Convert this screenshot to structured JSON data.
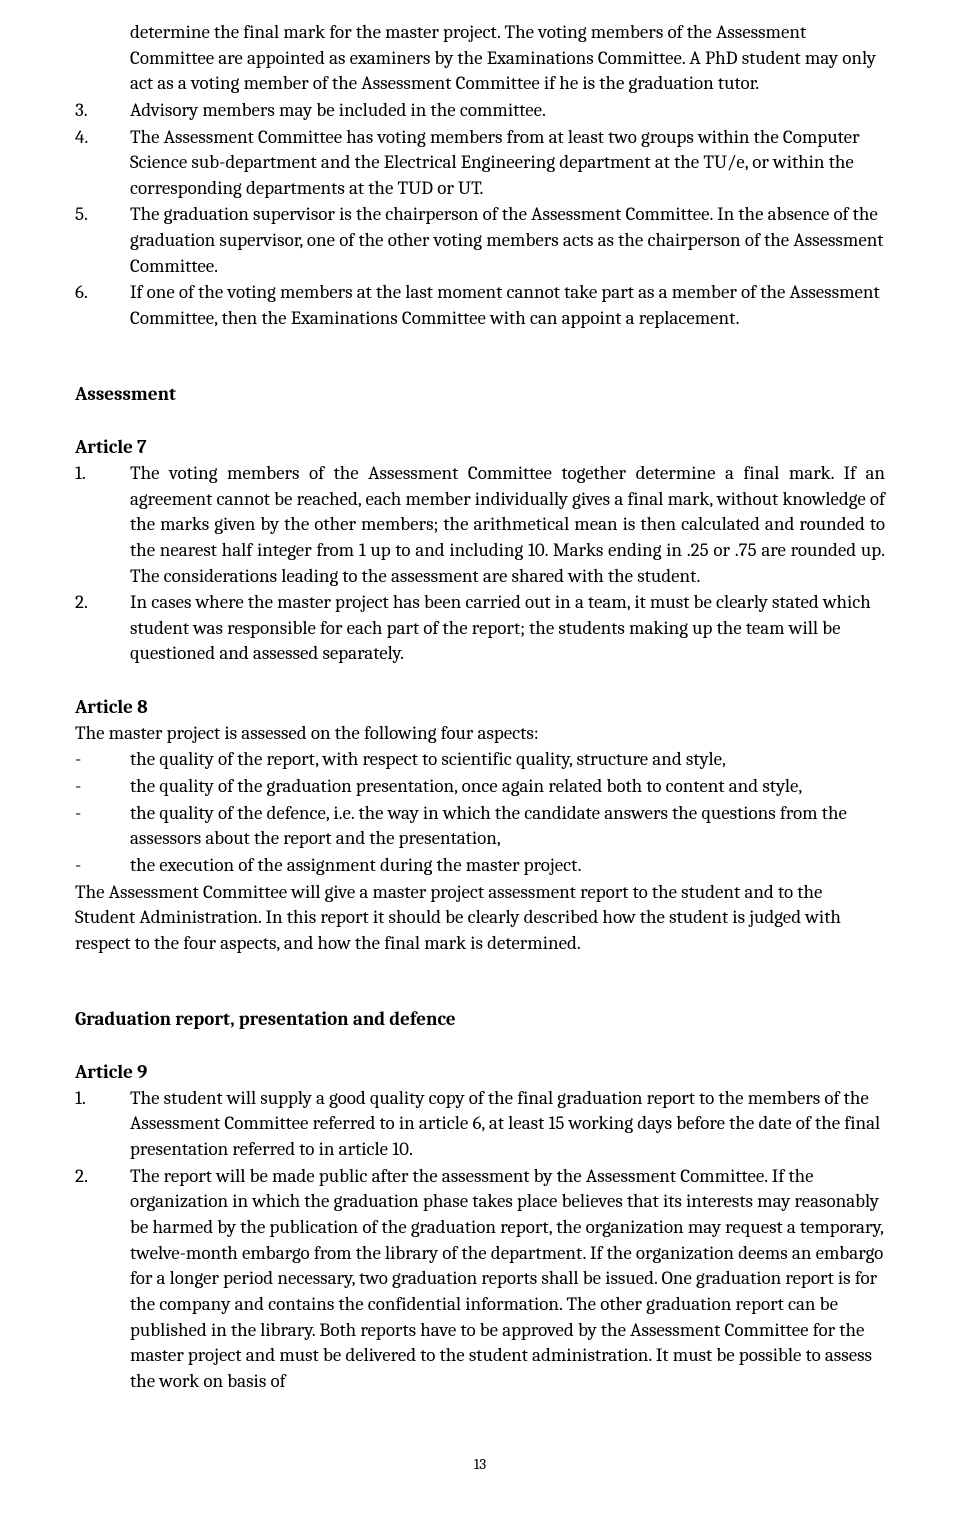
{
  "topItems": [
    {
      "num": "",
      "text": "determine the final mark for the master project. The voting members of the Assessment Committee are appointed as examiners by the Examinations Committee. A PhD student may only act as a voting member of the Assessment Committee if he is the graduation tutor."
    },
    {
      "num": "3.",
      "text": "Advisory members may be included in the committee."
    },
    {
      "num": "4.",
      "text": "The Assessment Committee has voting members from at least two groups within the Computer Science sub-department and the Electrical Engineering department at the TU/e, or within the corresponding departments at the TUD or UT."
    },
    {
      "num": "5.",
      "text": "The graduation supervisor is the chairperson of the Assessment Committee. In the absence of the graduation supervisor, one of the other voting members acts as the chairperson of the Assessment Committee."
    },
    {
      "num": "6.",
      "text": "If one of the voting members at the last moment cannot take part as a member of the Assessment Committee, then the Examinations Committee with can appoint a replacement."
    }
  ],
  "section1": {
    "heading": "Assessment",
    "article7": {
      "heading": "Article 7",
      "items": [
        {
          "num": "1.",
          "text": "The voting members of the Assessment Committee together determine a final mark. If an agreement cannot be reached, each member individually gives a final mark, without knowledge of the marks given by the other members; the arithmetical mean is then calculated and rounded to the nearest half integer from 1 up to and including 10. Marks ending in .25 or .75 are rounded up. The considerations leading to the assessment are shared with the student.",
          "justified": true
        },
        {
          "num": "2.",
          "text": "In cases where the master project has been carried out in a team, it must be clearly stated which student was responsible for each part of the report; the students making up the team will be questioned and assessed separately.",
          "justified": false
        }
      ]
    },
    "article8": {
      "heading": "Article 8",
      "intro": "The master project is assessed on the following four aspects:",
      "dashItems": [
        "the quality of the report, with respect to scientific quality, structure and style,",
        "the quality of the graduation presentation, once again related both to content and style,",
        "the quality of the defence, i.e. the way in which the candidate answers the questions from the assessors about the report and the presentation,",
        "the execution of the assignment during the master project."
      ],
      "outro": "The Assessment Committee will give a master project assessment report to the student and to the Student Administration. In this report it should be clearly described how the student is judged with respect to the four aspects, and how the final mark is determined."
    }
  },
  "section2": {
    "heading": "Graduation report, presentation and defence",
    "article9": {
      "heading": "Article 9",
      "items": [
        {
          "num": "1.",
          "text": "The student will supply a good quality copy of the final graduation report to the members of the Assessment Committee referred to in article 6, at least 15 working days before the date of the final presentation referred to in article 10."
        },
        {
          "num": "2.",
          "text": "The report will be made public after the assessment by the Assessment Committee. If the organization in which the graduation phase takes place believes that its interests may reasonably be harmed by the publication of the graduation report, the organization may request a temporary, twelve-month embargo from the library of the department. If the organization deems an embargo for a longer period necessary, two graduation reports shall be issued. One graduation report is for the company and contains the confidential information. The other graduation report can be published in the library. Both reports have to be approved by the Assessment Committee for the master project and must be delivered to the student administration. It must be possible to assess the work on basis of"
        }
      ]
    }
  },
  "pageNumber": "13"
}
